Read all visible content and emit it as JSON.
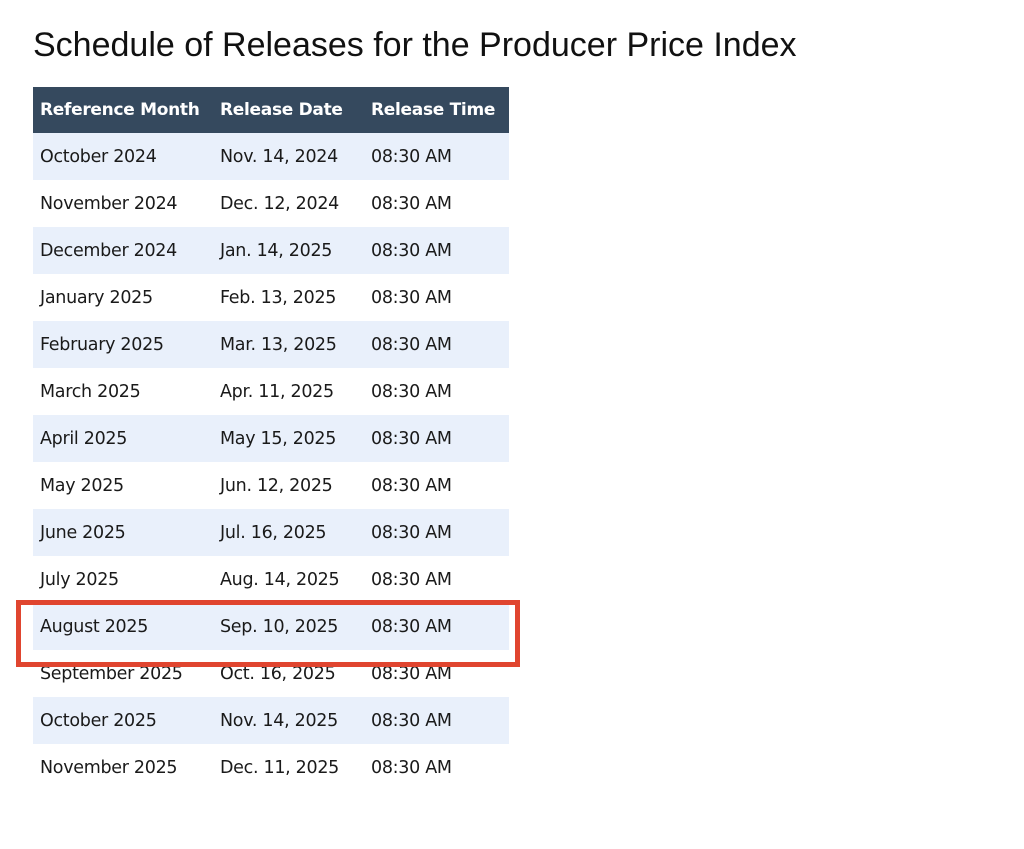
{
  "page": {
    "title": "Schedule of Releases for the Producer Price Index"
  },
  "table": {
    "headers": [
      "Reference Month",
      "Release Date",
      "Release Time"
    ],
    "rows": [
      [
        "October 2024",
        "Nov. 14, 2024",
        "08:30 AM"
      ],
      [
        "November 2024",
        "Dec. 12, 2024",
        "08:30 AM"
      ],
      [
        "December 2024",
        "Jan. 14, 2025",
        "08:30 AM"
      ],
      [
        "January 2025",
        "Feb. 13, 2025",
        "08:30 AM"
      ],
      [
        "February 2025",
        "Mar. 13, 2025",
        "08:30 AM"
      ],
      [
        "March 2025",
        "Apr. 11, 2025",
        "08:30 AM"
      ],
      [
        "April 2025",
        "May 15, 2025",
        "08:30 AM"
      ],
      [
        "May 2025",
        "Jun. 12, 2025",
        "08:30 AM"
      ],
      [
        "June 2025",
        "Jul. 16, 2025",
        "08:30 AM"
      ],
      [
        "July 2025",
        "Aug. 14, 2025",
        "08:30 AM"
      ],
      [
        "August 2025",
        "Sep. 10, 2025",
        "08:30 AM"
      ],
      [
        "September 2025",
        "Oct. 16, 2025",
        "08:30 AM"
      ],
      [
        "October 2025",
        "Nov. 14, 2025",
        "08:30 AM"
      ],
      [
        "November 2025",
        "Dec. 11, 2025",
        "08:30 AM"
      ]
    ],
    "highlighted_row": "August 2025"
  },
  "colors": {
    "header_bg": "#35495e",
    "stripe_bg": "#e9f0fb",
    "highlight_border": "#e0452f"
  }
}
